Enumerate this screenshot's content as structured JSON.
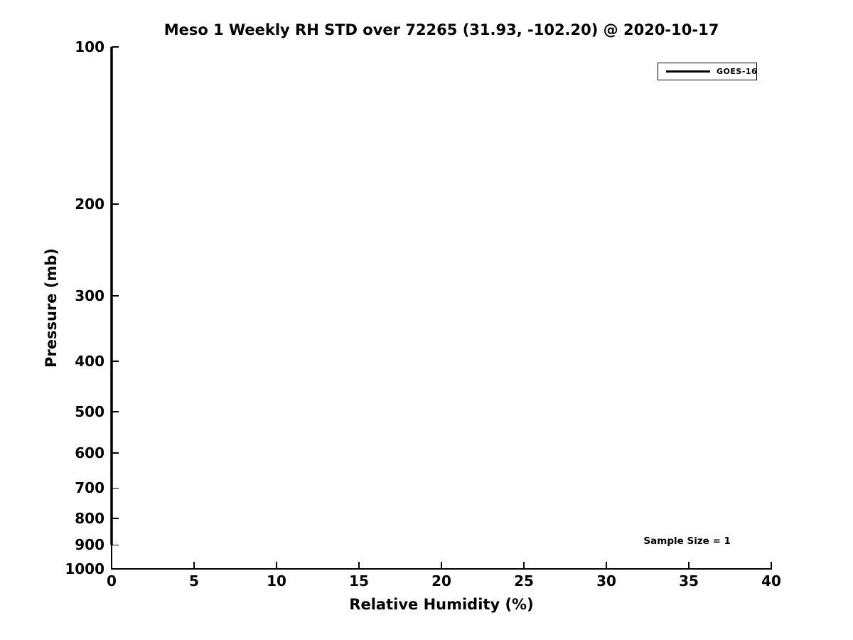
{
  "chart_data": {
    "type": "line",
    "title": "Meso 1 Weekly RH STD over 72265 (31.93, -102.20) @ 2020-10-17",
    "xlabel": "Relative Humidity (%)",
    "ylabel": "Pressure (mb)",
    "xlim": [
      0,
      40
    ],
    "xticks": [
      0,
      5,
      10,
      15,
      20,
      25,
      30,
      35,
      40
    ],
    "ylim": [
      1000,
      100
    ],
    "yscale": "log",
    "y_inverted": true,
    "yticks": [
      100,
      200,
      300,
      400,
      500,
      600,
      700,
      800,
      900,
      1000
    ],
    "grid": false,
    "spines": [
      "left",
      "bottom"
    ],
    "tick_direction": "in",
    "series": [
      {
        "name": "GOES-16",
        "color": "#000000",
        "linewidth": 3.5,
        "x": [
          0,
          0
        ],
        "y": [
          100,
          900
        ]
      }
    ],
    "legend": {
      "position": "upper right",
      "entries": [
        {
          "label": "GOES-16",
          "color": "#000000"
        }
      ]
    },
    "annotations": [
      {
        "text": "Sample Size = 1",
        "x": 34.9,
        "y": 885,
        "align": "center"
      }
    ]
  },
  "colors": {
    "foreground": "#000000",
    "background": "#ffffff"
  }
}
